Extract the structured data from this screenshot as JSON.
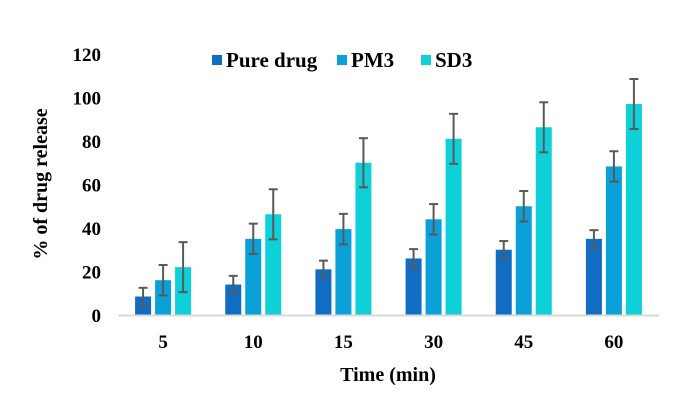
{
  "chart_data": {
    "type": "bar",
    "title": "",
    "xlabel": "Time (min)",
    "ylabel": "% of drug release",
    "categories": [
      "5",
      "10",
      "15",
      "30",
      "45",
      "60"
    ],
    "ylim": [
      0,
      120
    ],
    "yticks": [
      "0",
      "20",
      "40",
      "60",
      "80",
      "100",
      "120"
    ],
    "grid": false,
    "legend_position": "top-center",
    "series": [
      {
        "name": "Pure drug",
        "color": "#116DC4",
        "values": [
          8.5,
          14,
          21,
          26,
          30,
          35
        ],
        "errors": [
          4,
          4,
          4,
          4.3,
          4,
          4
        ]
      },
      {
        "name": "PM3",
        "color": "#0AA0D8",
        "values": [
          16,
          35,
          39.5,
          44,
          50,
          68.3
        ],
        "errors": [
          7,
          7,
          7,
          7,
          7,
          7
        ]
      },
      {
        "name": "SD3",
        "color": "#0DD0D8",
        "values": [
          22,
          46.3,
          70,
          81,
          86.3,
          97
        ],
        "errors": [
          11.5,
          11.5,
          11.3,
          11.5,
          11.5,
          11.5
        ]
      }
    ],
    "error_bar_color": "#595959",
    "axis_line_color": "#D9D9D9"
  }
}
